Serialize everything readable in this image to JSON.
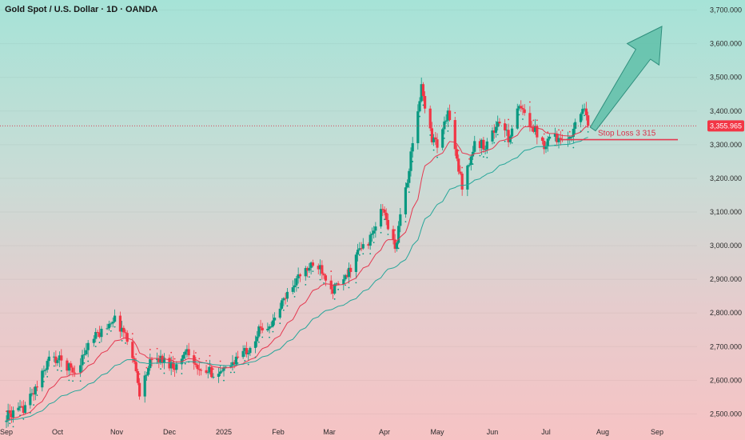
{
  "header": {
    "title": "Gold Spot / U.S. Dollar · 1D · OANDA"
  },
  "colors": {
    "up": "#089981",
    "down": "#f23645",
    "ema_fast": "#e53950",
    "ema_slow": "#26a69a",
    "stop_line": "#e53950",
    "arrow": "#5fbfa9",
    "last_price_bg": "#f23645"
  },
  "chart_data": {
    "type": "candlestick",
    "instrument": "Gold Spot / U.S. Dollar",
    "timeframe": "1D",
    "source": "OANDA",
    "y_axis": {
      "ylim": [
        2470,
        3730
      ],
      "ticks": [
        "3,700.000",
        "3,600.000",
        "3,500.000",
        "3,400.000",
        "3,300.000",
        "3,200.000",
        "3,100.000",
        "3,000.000",
        "2,900.000",
        "2,800.000",
        "2,700.000",
        "2,600.000",
        "2,500.000"
      ]
    },
    "x_axis": {
      "ticks": [
        "Sep",
        "Oct",
        "Nov",
        "Dec",
        "2025",
        "Feb",
        "Mar",
        "Apr",
        "May",
        "Jun",
        "Jul",
        "Aug",
        "Sep"
      ]
    },
    "last_price": "3,355.965",
    "annotations": {
      "stop_loss_label": "Stop Loss 3 315",
      "stop_loss_value": 3315
    },
    "trend_points": [
      {
        "date": "Sep 1",
        "price": 2495
      },
      {
        "date": "Sep 10",
        "price": 2510
      },
      {
        "date": "Sep 20",
        "price": 2590
      },
      {
        "date": "Sep 26",
        "price": 2665
      },
      {
        "date": "Oct 2",
        "price": 2660
      },
      {
        "date": "Oct 10",
        "price": 2625
      },
      {
        "date": "Oct 18",
        "price": 2715
      },
      {
        "date": "Oct 25",
        "price": 2750
      },
      {
        "date": "Oct 30",
        "price": 2785
      },
      {
        "date": "Nov 5",
        "price": 2745
      },
      {
        "date": "Nov 10",
        "price": 2680
      },
      {
        "date": "Nov 14",
        "price": 2565
      },
      {
        "date": "Nov 20",
        "price": 2650
      },
      {
        "date": "Nov 25",
        "price": 2665
      },
      {
        "date": "Dec 1",
        "price": 2650
      },
      {
        "date": "Dec 6",
        "price": 2640
      },
      {
        "date": "Dec 11",
        "price": 2700
      },
      {
        "date": "Dec 18",
        "price": 2620
      },
      {
        "date": "Dec 24",
        "price": 2625
      },
      {
        "date": "Dec 31",
        "price": 2620
      },
      {
        "date": "Jan 8",
        "price": 2665
      },
      {
        "date": "Jan 15",
        "price": 2695
      },
      {
        "date": "Jan 22",
        "price": 2755
      },
      {
        "date": "Jan 29",
        "price": 2770
      },
      {
        "date": "Feb 4",
        "price": 2840
      },
      {
        "date": "Feb 11",
        "price": 2900
      },
      {
        "date": "Feb 18",
        "price": 2935
      },
      {
        "date": "Feb 24",
        "price": 2940
      },
      {
        "date": "Mar 3",
        "price": 2870
      },
      {
        "date": "Mar 10",
        "price": 2900
      },
      {
        "date": "Mar 17",
        "price": 2980
      },
      {
        "date": "Mar 24",
        "price": 3020
      },
      {
        "date": "Mar 31",
        "price": 3110
      },
      {
        "date": "Apr 7",
        "price": 2990
      },
      {
        "date": "Apr 14",
        "price": 3200
      },
      {
        "date": "Apr 18",
        "price": 3330
      },
      {
        "date": "Apr 22",
        "price": 3470
      },
      {
        "date": "Apr 28",
        "price": 3320
      },
      {
        "date": "May 2",
        "price": 3300
      },
      {
        "date": "May 7",
        "price": 3400
      },
      {
        "date": "May 12",
        "price": 3250
      },
      {
        "date": "May 15",
        "price": 3180
      },
      {
        "date": "May 22",
        "price": 3300
      },
      {
        "date": "May 28",
        "price": 3300
      },
      {
        "date": "Jun 5",
        "price": 3370
      },
      {
        "date": "Jun 10",
        "price": 3320
      },
      {
        "date": "Jun 16",
        "price": 3410
      },
      {
        "date": "Jun 23",
        "price": 3360
      },
      {
        "date": "Jun 30",
        "price": 3300
      },
      {
        "date": "Jul 4",
        "price": 3340
      },
      {
        "date": "Jul 10",
        "price": 3300
      },
      {
        "date": "Jul 16",
        "price": 3345
      },
      {
        "date": "Jul 22",
        "price": 3420
      },
      {
        "date": "Jul 25",
        "price": 3355
      }
    ]
  }
}
